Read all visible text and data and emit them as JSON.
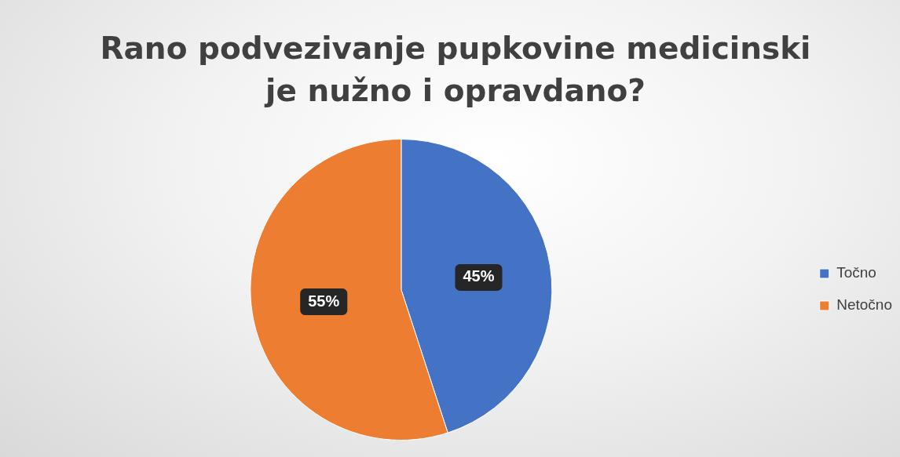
{
  "chart_data": {
    "type": "pie",
    "title": "Rano podvezivanje pupkovine medicinski je nužno i opravdano?",
    "categories": [
      "Točno",
      "Netočno"
    ],
    "values": [
      45,
      55
    ],
    "colors": [
      "#4472c4",
      "#ed7d31"
    ],
    "value_labels": [
      "45%",
      "55%"
    ],
    "legend": "right"
  }
}
